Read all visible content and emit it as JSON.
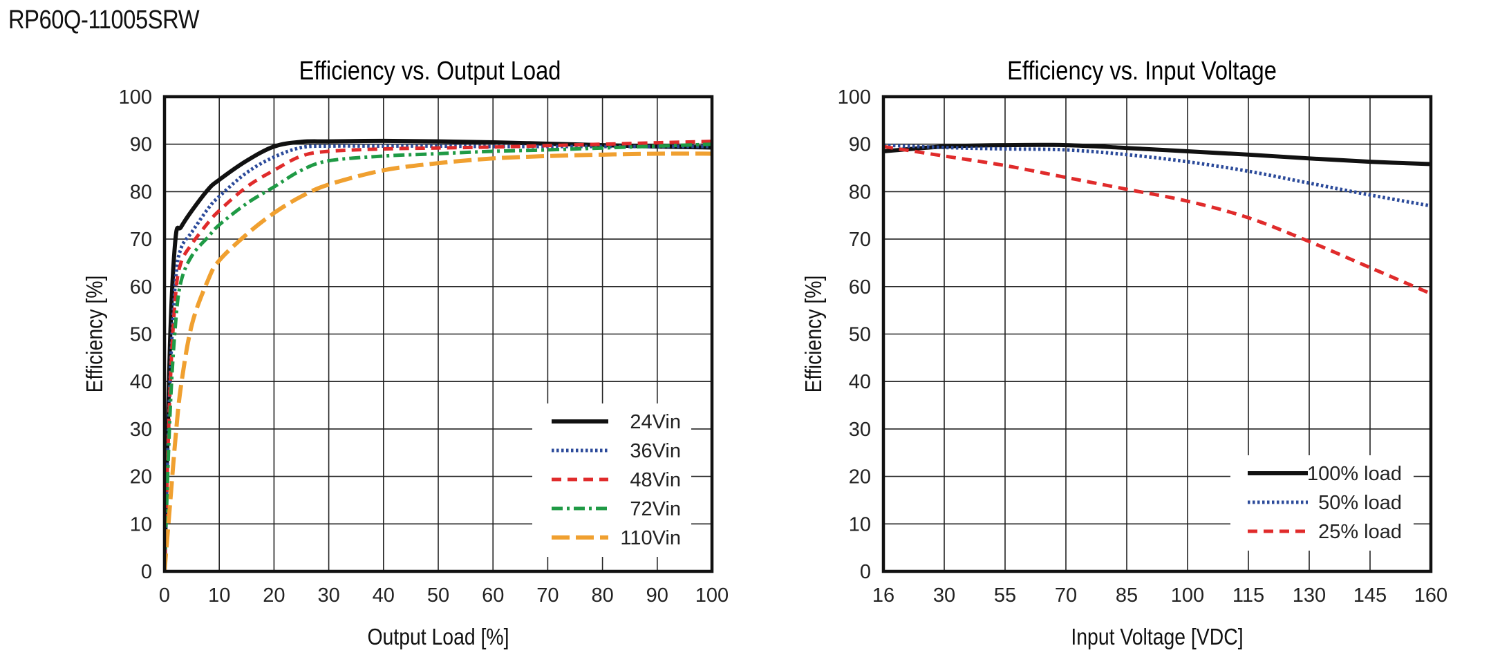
{
  "page_title": "RP60Q-11005SRW",
  "chart_data": [
    {
      "type": "line",
      "title": "Efficiency vs. Output Load",
      "xlabel": "Output Load [%]",
      "ylabel": "Efficiency [%]",
      "xlim": [
        0,
        100
      ],
      "ylim": [
        0,
        100
      ],
      "xticks": [
        0,
        10,
        20,
        30,
        40,
        50,
        60,
        70,
        80,
        90,
        100
      ],
      "yticks": [
        0,
        10,
        20,
        30,
        40,
        50,
        60,
        70,
        80,
        90,
        100
      ],
      "grid": true,
      "legend_position": "bottom-right",
      "series": [
        {
          "name": "24Vin",
          "color": "#111111",
          "style": "solid",
          "x": [
            0,
            1,
            2,
            3,
            5,
            8,
            10,
            15,
            20,
            25,
            30,
            40,
            50,
            60,
            70,
            80,
            90,
            100
          ],
          "y": [
            0,
            48,
            70,
            72.5,
            76,
            80.5,
            82.5,
            86.5,
            89.5,
            90.5,
            90.6,
            90.7,
            90.6,
            90.4,
            90.1,
            89.8,
            89.5,
            89.3
          ]
        },
        {
          "name": "36Vin",
          "color": "#2b4a9a",
          "style": "dotted",
          "x": [
            0,
            1,
            2,
            3,
            5,
            8,
            10,
            15,
            20,
            25,
            30,
            40,
            50,
            60,
            70,
            80,
            90,
            100
          ],
          "y": [
            0,
            40,
            61,
            68,
            71.5,
            76.5,
            79,
            84,
            87.3,
            89.3,
            89.6,
            89.6,
            89.6,
            89.5,
            89.5,
            89.5,
            89.5,
            89.5
          ]
        },
        {
          "name": "48Vin",
          "color": "#e02b2b",
          "style": "dashed",
          "x": [
            0,
            1,
            2,
            3,
            5,
            8,
            10,
            15,
            20,
            25,
            30,
            40,
            50,
            60,
            70,
            80,
            90,
            100
          ],
          "y": [
            0,
            38,
            58,
            65,
            69,
            73.5,
            76,
            81,
            84.5,
            87.5,
            88.5,
            89,
            89.2,
            89.4,
            89.7,
            90,
            90.3,
            90.6
          ]
        },
        {
          "name": "72Vin",
          "color": "#1f9a45",
          "style": "dashdot",
          "x": [
            0,
            1,
            2,
            3,
            5,
            8,
            10,
            15,
            20,
            25,
            30,
            40,
            50,
            60,
            70,
            80,
            90,
            100
          ],
          "y": [
            0,
            33,
            52,
            61,
            66.5,
            70.5,
            73,
            77.5,
            81,
            84.5,
            86.5,
            87.5,
            88,
            88.5,
            88.8,
            89.2,
            89.6,
            90
          ]
        },
        {
          "name": "110Vin",
          "color": "#f0a030",
          "style": "longdash",
          "x": [
            0,
            1,
            2,
            3,
            5,
            8,
            10,
            15,
            20,
            25,
            30,
            40,
            50,
            60,
            70,
            80,
            90,
            100
          ],
          "y": [
            0,
            14,
            28,
            39,
            52,
            61.5,
            65.5,
            71,
            75.5,
            79,
            81.5,
            84.5,
            86,
            87,
            87.5,
            87.8,
            88,
            88
          ]
        }
      ]
    },
    {
      "type": "line",
      "title": "Efficiency vs. Input Voltage",
      "xlabel": "Input Voltage [VDC]",
      "ylabel": "Efficiency [%]",
      "ylim": [
        0,
        100
      ],
      "categories": [
        "16",
        "30",
        "55",
        "70",
        "85",
        "100",
        "115",
        "130",
        "145",
        "160"
      ],
      "yticks": [
        0,
        10,
        20,
        30,
        40,
        50,
        60,
        70,
        80,
        90,
        100
      ],
      "grid": true,
      "legend_position": "bottom-right",
      "series": [
        {
          "name": "100% load",
          "color": "#111111",
          "style": "solid",
          "y": [
            88.5,
            89.5,
            89.8,
            89.8,
            89.2,
            88.5,
            87.8,
            87,
            86.3,
            85.8
          ]
        },
        {
          "name": "50% load",
          "color": "#2b4a9a",
          "style": "dotted",
          "y": [
            89.8,
            89.3,
            89,
            88.8,
            87.8,
            86.3,
            84.3,
            81.8,
            79.3,
            77
          ]
        },
        {
          "name": "25% load",
          "color": "#e02b2b",
          "style": "dashed",
          "y": [
            89.5,
            87.5,
            85.5,
            83,
            80.5,
            78,
            74.5,
            69.5,
            64,
            58.5
          ]
        }
      ]
    }
  ]
}
